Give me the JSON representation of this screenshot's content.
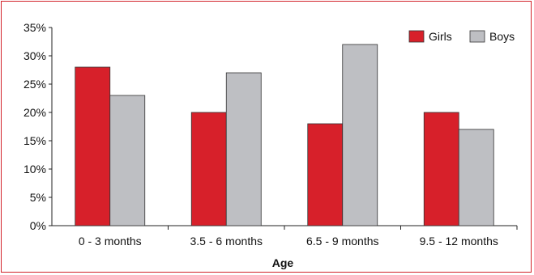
{
  "chart_data": {
    "type": "bar",
    "title": "",
    "xlabel": "Age",
    "ylabel": "",
    "categories": [
      "0 - 3 months",
      "3.5 - 6 months",
      "6.5 - 9 months",
      "9.5 - 12 months"
    ],
    "series": [
      {
        "name": "Girls",
        "color": "#d7202a",
        "values": [
          28,
          20,
          18,
          20
        ]
      },
      {
        "name": "Boys",
        "color": "#bebfc3",
        "values": [
          23,
          27,
          32,
          17
        ]
      }
    ],
    "ylim": [
      0,
      35
    ],
    "yticks": [
      {
        "value": 0,
        "label": "0%"
      },
      {
        "value": 5,
        "label": "5%"
      },
      {
        "value": 10,
        "label": "10%"
      },
      {
        "value": 15,
        "label": "15%"
      },
      {
        "value": 20,
        "label": "20%"
      },
      {
        "value": 25,
        "label": "25%"
      },
      {
        "value": 30,
        "label": "30%"
      },
      {
        "value": 35,
        "label": "35%"
      }
    ],
    "legend_position": "top-right",
    "grid": false,
    "frame_color": "#d2232a"
  }
}
